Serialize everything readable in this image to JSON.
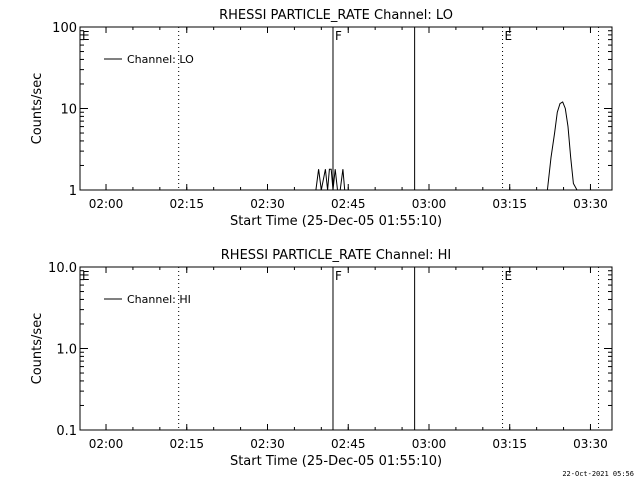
{
  "chart_data": [
    {
      "type": "line",
      "title": "RHESSI PARTICLE_RATE Channel: LO",
      "xlabel": "Start Time (25-Dec-05 01:55:10)",
      "ylabel": "Counts/sec",
      "yscale": "log",
      "ylim": [
        1,
        100
      ],
      "xlim": [
        "01:55:10",
        "03:34:00"
      ],
      "x_tick_labels": [
        "02:00",
        "02:15",
        "02:30",
        "02:45",
        "03:00",
        "03:15",
        "03:30"
      ],
      "y_tick_labels": [
        "1",
        "10",
        "100"
      ],
      "legend": {
        "placement": "top-left",
        "entries": [
          "Channel: LO"
        ]
      },
      "series": [
        {
          "name": "Channel: LO",
          "x": [
            "02:39:00",
            "02:39:30",
            "02:40:00",
            "02:40:45",
            "02:41:10",
            "02:41:30",
            "02:41:50",
            "02:42:10",
            "02:42:35",
            "02:43:00",
            "02:43:30",
            "02:44:00",
            "02:44:20",
            "02:44:50",
            "02:45:10",
            "03:22:00",
            "03:22:40",
            "03:23:20",
            "03:23:50",
            "03:24:20",
            "03:24:50",
            "03:25:20",
            "03:25:50",
            "03:26:20",
            "03:26:50",
            "03:27:30"
          ],
          "y": [
            1.0,
            1.8,
            1.0,
            1.8,
            1.0,
            1.8,
            1.8,
            1.0,
            1.8,
            1.0,
            1.0,
            1.8,
            1.0,
            1.0,
            1.0,
            1.0,
            2.5,
            5.0,
            9.0,
            11.5,
            12.0,
            10.0,
            6.0,
            2.5,
            1.2,
            1.0
          ]
        }
      ],
      "annotations": [
        {
          "text": "E",
          "x": "01:55:10",
          "style": "dotted"
        },
        {
          "text": "",
          "x": "02:13:30",
          "style": "dotted"
        },
        {
          "text": "F",
          "x": "02:42:10",
          "style": "solid"
        },
        {
          "text": "",
          "x": "02:57:20",
          "style": "solid"
        },
        {
          "text": "E",
          "x": "03:13:40",
          "style": "dotted"
        },
        {
          "text": "",
          "x": "03:31:30",
          "style": "dotted"
        }
      ]
    },
    {
      "type": "line",
      "title": "RHESSI PARTICLE_RATE Channel: HI",
      "xlabel": "Start Time (25-Dec-05 01:55:10)",
      "ylabel": "Counts/sec",
      "yscale": "log",
      "ylim": [
        0.1,
        10
      ],
      "xlim": [
        "01:55:10",
        "03:34:00"
      ],
      "x_tick_labels": [
        "02:00",
        "02:15",
        "02:30",
        "02:45",
        "03:00",
        "03:15",
        "03:30"
      ],
      "y_tick_labels": [
        "0.1",
        "1.0",
        "10.0"
      ],
      "legend": {
        "placement": "top-left",
        "entries": [
          "Channel: HI"
        ]
      },
      "series": [
        {
          "name": "Channel: HI",
          "x": [],
          "y": []
        }
      ],
      "annotations": [
        {
          "text": "E",
          "x": "01:55:10",
          "style": "dotted"
        },
        {
          "text": "",
          "x": "02:13:30",
          "style": "dotted"
        },
        {
          "text": "F",
          "x": "02:42:10",
          "style": "solid"
        },
        {
          "text": "",
          "x": "02:57:20",
          "style": "solid"
        },
        {
          "text": "E",
          "x": "03:13:40",
          "style": "dotted"
        },
        {
          "text": "",
          "x": "03:31:30",
          "style": "dotted"
        }
      ]
    }
  ],
  "footer": {
    "timestamp": "22-Oct-2021 05:56"
  }
}
